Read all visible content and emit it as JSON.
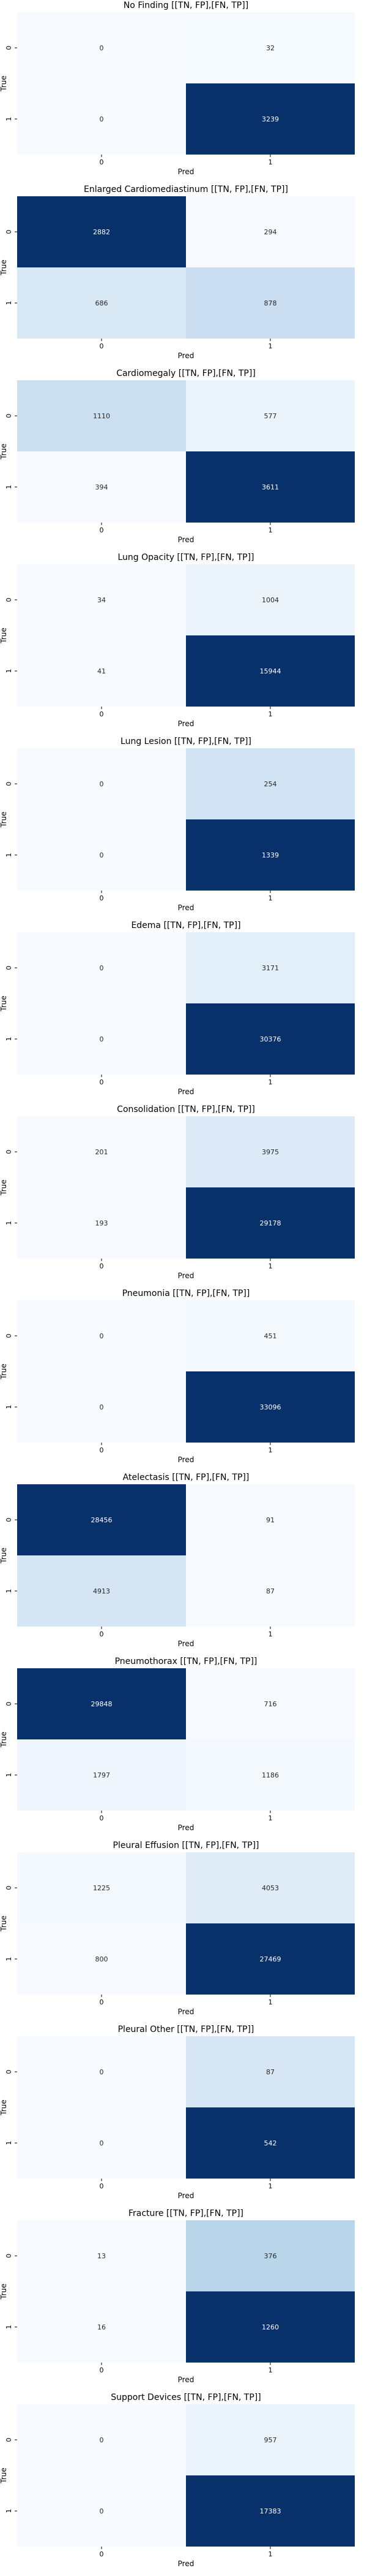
{
  "chart_data": [
    {
      "type": "heatmap",
      "title": "No Finding [[TN, FP],[FN, TP]]",
      "xlabel": "Pred",
      "ylabel": "True",
      "x_ticks": [
        "0",
        "1"
      ],
      "y_ticks": [
        "0",
        "1"
      ],
      "matrix": [
        [
          0,
          32
        ],
        [
          0,
          3239
        ]
      ]
    },
    {
      "type": "heatmap",
      "title": "Enlarged Cardiomediastinum [[TN, FP],[FN, TP]]",
      "xlabel": "Pred",
      "ylabel": "True",
      "x_ticks": [
        "0",
        "1"
      ],
      "y_ticks": [
        "0",
        "1"
      ],
      "matrix": [
        [
          2882,
          294
        ],
        [
          686,
          878
        ]
      ]
    },
    {
      "type": "heatmap",
      "title": "Cardiomegaly [[TN, FP],[FN, TP]]",
      "xlabel": "Pred",
      "ylabel": "True",
      "x_ticks": [
        "0",
        "1"
      ],
      "y_ticks": [
        "0",
        "1"
      ],
      "matrix": [
        [
          1110,
          577
        ],
        [
          394,
          3611
        ]
      ]
    },
    {
      "type": "heatmap",
      "title": "Lung Opacity [[TN, FP],[FN, TP]]",
      "xlabel": "Pred",
      "ylabel": "True",
      "x_ticks": [
        "0",
        "1"
      ],
      "y_ticks": [
        "0",
        "1"
      ],
      "matrix": [
        [
          34,
          1004
        ],
        [
          41,
          15944
        ]
      ]
    },
    {
      "type": "heatmap",
      "title": "Lung Lesion [[TN, FP],[FN, TP]]",
      "xlabel": "Pred",
      "ylabel": "True",
      "x_ticks": [
        "0",
        "1"
      ],
      "y_ticks": [
        "0",
        "1"
      ],
      "matrix": [
        [
          0,
          254
        ],
        [
          0,
          1339
        ]
      ]
    },
    {
      "type": "heatmap",
      "title": "Edema [[TN, FP],[FN, TP]]",
      "xlabel": "Pred",
      "ylabel": "True",
      "x_ticks": [
        "0",
        "1"
      ],
      "y_ticks": [
        "0",
        "1"
      ],
      "matrix": [
        [
          0,
          3171
        ],
        [
          0,
          30376
        ]
      ]
    },
    {
      "type": "heatmap",
      "title": "Consolidation [[TN, FP],[FN, TP]]",
      "xlabel": "Pred",
      "ylabel": "True",
      "x_ticks": [
        "0",
        "1"
      ],
      "y_ticks": [
        "0",
        "1"
      ],
      "matrix": [
        [
          201,
          3975
        ],
        [
          193,
          29178
        ]
      ]
    },
    {
      "type": "heatmap",
      "title": "Pneumonia [[TN, FP],[FN, TP]]",
      "xlabel": "Pred",
      "ylabel": "True",
      "x_ticks": [
        "0",
        "1"
      ],
      "y_ticks": [
        "0",
        "1"
      ],
      "matrix": [
        [
          0,
          451
        ],
        [
          0,
          33096
        ]
      ]
    },
    {
      "type": "heatmap",
      "title": "Atelectasis [[TN, FP],[FN, TP]]",
      "xlabel": "Pred",
      "ylabel": "True",
      "x_ticks": [
        "0",
        "1"
      ],
      "y_ticks": [
        "0",
        "1"
      ],
      "matrix": [
        [
          28456,
          91
        ],
        [
          4913,
          87
        ]
      ]
    },
    {
      "type": "heatmap",
      "title": "Pneumothorax [[TN, FP],[FN, TP]]",
      "xlabel": "Pred",
      "ylabel": "True",
      "x_ticks": [
        "0",
        "1"
      ],
      "y_ticks": [
        "0",
        "1"
      ],
      "matrix": [
        [
          29848,
          716
        ],
        [
          1797,
          1186
        ]
      ]
    },
    {
      "type": "heatmap",
      "title": "Pleural Effusion [[TN, FP],[FN, TP]]",
      "xlabel": "Pred",
      "ylabel": "True",
      "x_ticks": [
        "0",
        "1"
      ],
      "y_ticks": [
        "0",
        "1"
      ],
      "matrix": [
        [
          1225,
          4053
        ],
        [
          800,
          27469
        ]
      ]
    },
    {
      "type": "heatmap",
      "title": "Pleural Other [[TN, FP],[FN, TP]]",
      "xlabel": "Pred",
      "ylabel": "True",
      "x_ticks": [
        "0",
        "1"
      ],
      "y_ticks": [
        "0",
        "1"
      ],
      "matrix": [
        [
          0,
          87
        ],
        [
          0,
          542
        ]
      ]
    },
    {
      "type": "heatmap",
      "title": "Fracture [[TN, FP],[FN, TP]]",
      "xlabel": "Pred",
      "ylabel": "True",
      "x_ticks": [
        "0",
        "1"
      ],
      "y_ticks": [
        "0",
        "1"
      ],
      "matrix": [
        [
          13,
          376
        ],
        [
          16,
          1260
        ]
      ]
    },
    {
      "type": "heatmap",
      "title": "Support Devices [[TN, FP],[FN, TP]]",
      "xlabel": "Pred",
      "ylabel": "True",
      "x_ticks": [
        "0",
        "1"
      ],
      "y_ticks": [
        "0",
        "1"
      ],
      "matrix": [
        [
          0,
          957
        ],
        [
          0,
          17383
        ]
      ]
    }
  ],
  "colormap": [
    "#f7fbff",
    "#deebf7",
    "#c6dbef",
    "#9ecae1",
    "#6baed6",
    "#4292c6",
    "#2171b5",
    "#08519c",
    "#08306b"
  ],
  "text_color_light": "#ffffff",
  "text_color_dark": "#262626"
}
